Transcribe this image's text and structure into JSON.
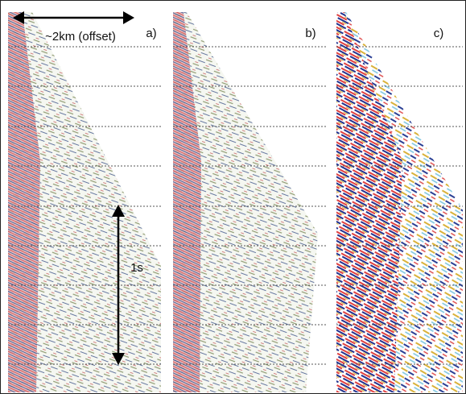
{
  "panels": [
    {
      "label": "a)"
    },
    {
      "label": "b)"
    },
    {
      "label": "c)"
    }
  ],
  "annotations": {
    "offset": "~2km (offset)",
    "time": "1s"
  }
}
